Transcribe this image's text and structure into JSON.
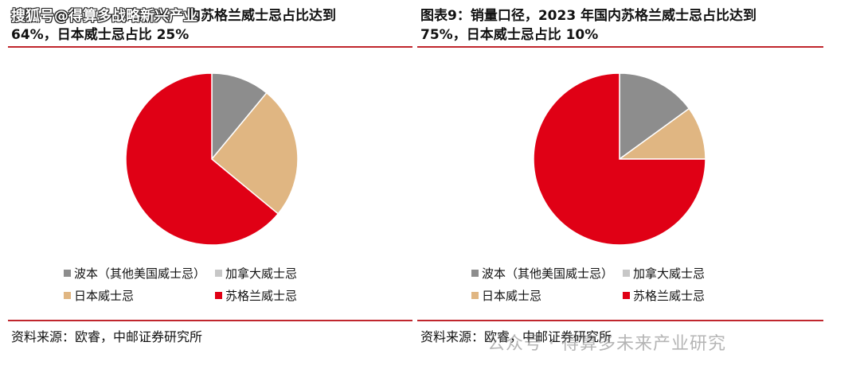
{
  "left": {
    "title_line1": "搜狐号@得算多战略新兴产业",
    "title_line1_tail": "内苏格兰威士忌占比达到",
    "title_line2": "64%，日本威士忌占比 25%"
  },
  "right": {
    "title_line1": "图表9：销量口径，2023 年国内苏格兰威士忌占比达到",
    "title_line2": "75%，日本威士忌占比 10%"
  },
  "source": "资料来源：欧睿，中邮证券研究所",
  "watermark_bottom": "公众号 · 得算多未来产业研究",
  "colors": {
    "bourbon": "#8d8d8d",
    "canadian": "#c7c7c7",
    "japanese": "#e0b682",
    "scotch": "#e00015"
  },
  "chart_data": [
    {
      "type": "pie",
      "categories": [
        "波本（其他美国威士忌）",
        "加拿大威士忌",
        "日本威士忌",
        "苏格兰威士忌"
      ],
      "values": [
        11,
        0,
        25,
        64
      ]
    },
    {
      "type": "pie",
      "categories": [
        "波本（其他美国威士忌）",
        "加拿大威士忌",
        "日本威士忌",
        "苏格兰威士忌"
      ],
      "values": [
        15,
        0,
        10,
        75
      ]
    }
  ]
}
